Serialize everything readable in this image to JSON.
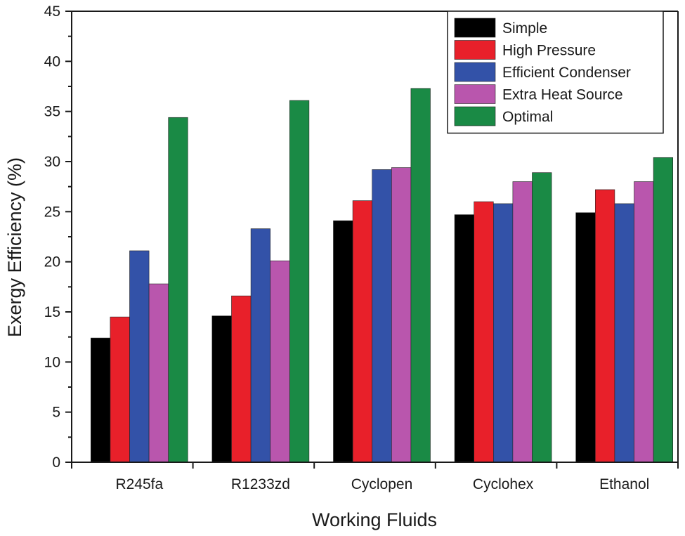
{
  "chart_data": {
    "type": "bar",
    "title": "",
    "xlabel": "Working Fluids",
    "ylabel": "Exergy Efficiency (%)",
    "ylim": [
      0,
      45
    ],
    "yticks": [
      0,
      5,
      10,
      15,
      20,
      25,
      30,
      35,
      40,
      45
    ],
    "categories": [
      "R245fa",
      "R1233zd",
      "Cyclopen",
      "Cyclohex",
      "Ethanol"
    ],
    "series": [
      {
        "name": "Simple",
        "color": "#000000",
        "values": [
          12.4,
          14.6,
          24.1,
          24.7,
          24.9
        ]
      },
      {
        "name": "High Pressure",
        "color": "#e8202a",
        "values": [
          14.5,
          16.6,
          26.1,
          26.0,
          27.2
        ]
      },
      {
        "name": "Efficient Condenser",
        "color": "#3352a8",
        "values": [
          21.1,
          23.3,
          29.2,
          25.8,
          25.8
        ]
      },
      {
        "name": "Extra Heat Source",
        "color": "#b956ad",
        "values": [
          17.8,
          20.1,
          29.4,
          28.0,
          28.0
        ]
      },
      {
        "name": "Optimal",
        "color": "#1a8a45",
        "values": [
          34.4,
          36.1,
          37.3,
          28.9,
          30.4
        ]
      }
    ],
    "legend_position": "top-right"
  }
}
